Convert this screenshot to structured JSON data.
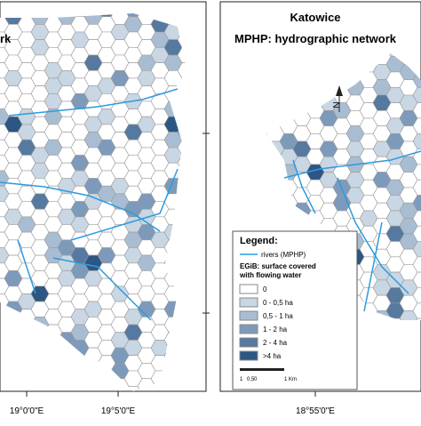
{
  "left_map": {
    "title_fragment": "rk",
    "x_labels": [
      "19°0'0\"E",
      "19°5'0\"E"
    ]
  },
  "right_map": {
    "title": "Katowice",
    "subtitle": "MPHP:  hydrographic network",
    "north_label": "N",
    "x_label": "18°55'0\"E"
  },
  "legend": {
    "title": "Legend:",
    "rivers": "rivers (MPHP)",
    "egib_title": [
      "EGiB: surface covered",
      "with flowing water"
    ],
    "classes": [
      "0",
      "0 - 0,5 ha",
      "0,5 - 1 ha",
      "1 - 2 ha",
      "2 - 4 ha",
      ">4 ha"
    ],
    "colors": [
      "#ffffff",
      "#c9d6e3",
      "#a9bdd2",
      "#7e9abb",
      "#56799f",
      "#2c5683"
    ],
    "river_color": "#2a9be0",
    "scale_labels": [
      "1",
      "0,5",
      "0",
      "1 Km"
    ]
  }
}
